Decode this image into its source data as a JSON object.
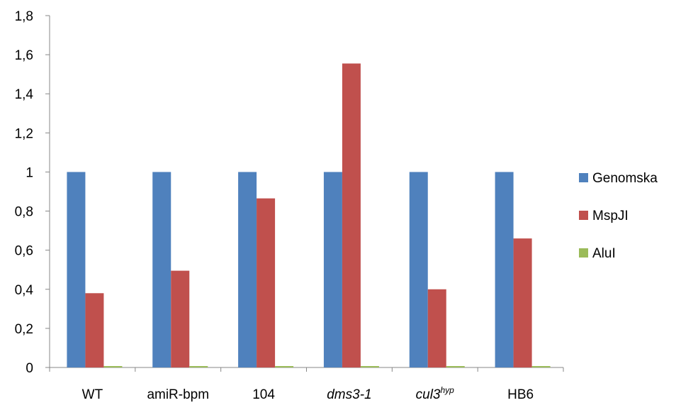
{
  "chart_data": {
    "type": "bar",
    "title": "",
    "xlabel": "",
    "ylabel": "",
    "ylim": [
      0,
      1.8
    ],
    "y_ticks": [
      "0",
      "0,2",
      "0,4",
      "0,6",
      "0,8",
      "1",
      "1,2",
      "1,4",
      "1,6",
      "1,8"
    ],
    "grid": false,
    "legend_position": "right",
    "categories": [
      {
        "text": "WT",
        "italic": false,
        "sup": ""
      },
      {
        "text": "amiR-bpm",
        "italic": false,
        "sup": ""
      },
      {
        "text": "104",
        "italic": false,
        "sup": ""
      },
      {
        "text": "dms3-1",
        "italic": true,
        "sup": ""
      },
      {
        "text": "cul3",
        "italic": true,
        "sup": "hyp"
      },
      {
        "text": "HB6",
        "italic": false,
        "sup": ""
      }
    ],
    "series": [
      {
        "name": "Genomska",
        "color": "#4f81bd",
        "values": [
          1,
          1,
          1,
          1,
          1,
          1
        ]
      },
      {
        "name": "MspJI",
        "color": "#c0504d",
        "values": [
          0.38,
          0.495,
          0.865,
          1.555,
          0.4,
          0.66
        ]
      },
      {
        "name": "AluI",
        "color": "#9bbb59",
        "values": [
          0.005,
          0.005,
          0.005,
          0.005,
          0.005,
          0.005
        ]
      }
    ]
  }
}
